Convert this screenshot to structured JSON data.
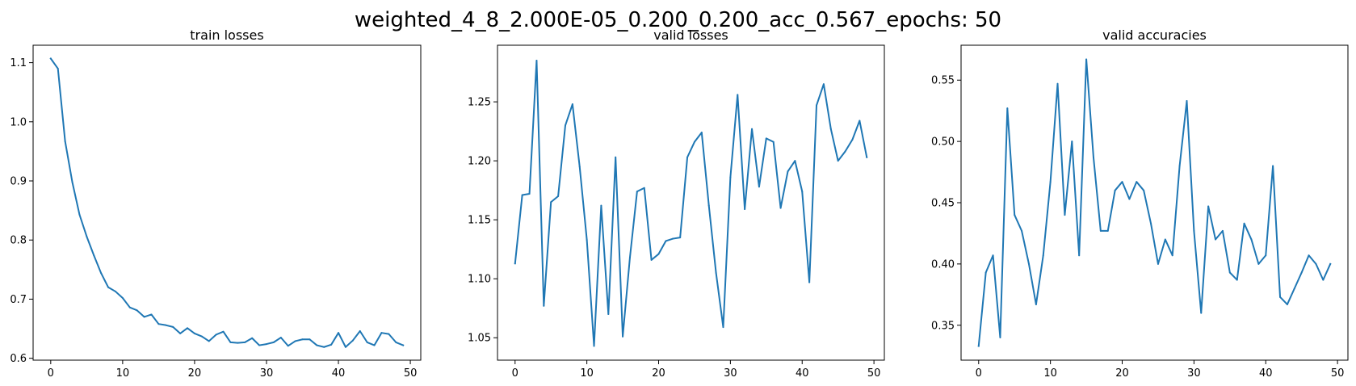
{
  "figure": {
    "suptitle": "weighted_4_8_2.000E-05_0.200_0.200_acc_0.567_epochs: 50"
  },
  "chart_data": [
    {
      "type": "line",
      "title": "train losses",
      "xlabel": "",
      "ylabel": "",
      "xlim": [
        -2.45,
        51.45
      ],
      "ylim": [
        0.5968,
        1.1295
      ],
      "xticks": [
        0,
        10,
        20,
        30,
        40,
        50
      ],
      "yticks": [
        0.6,
        0.7,
        0.8,
        0.9,
        1.0,
        1.1
      ],
      "ytick_labels": [
        "0.6",
        "0.7",
        "0.8",
        "0.9",
        "1.0",
        "1.1"
      ],
      "grid": false,
      "color": "#1f77b4",
      "x": [
        0,
        1,
        2,
        3,
        4,
        5,
        6,
        7,
        8,
        9,
        10,
        11,
        12,
        13,
        14,
        15,
        16,
        17,
        18,
        19,
        20,
        21,
        22,
        23,
        24,
        25,
        26,
        27,
        28,
        29,
        30,
        31,
        32,
        33,
        34,
        35,
        36,
        37,
        38,
        39,
        40,
        41,
        42,
        43,
        44,
        45,
        46,
        47,
        48,
        49
      ],
      "y": [
        1.107,
        1.09,
        0.967,
        0.898,
        0.843,
        0.806,
        0.774,
        0.744,
        0.72,
        0.713,
        0.702,
        0.686,
        0.681,
        0.67,
        0.674,
        0.658,
        0.656,
        0.653,
        0.642,
        0.651,
        0.642,
        0.637,
        0.629,
        0.64,
        0.645,
        0.627,
        0.626,
        0.627,
        0.634,
        0.622,
        0.624,
        0.627,
        0.635,
        0.621,
        0.629,
        0.632,
        0.632,
        0.622,
        0.619,
        0.623,
        0.643,
        0.619,
        0.63,
        0.646,
        0.627,
        0.622,
        0.643,
        0.641,
        0.627,
        0.622
      ]
    },
    {
      "type": "line",
      "title": "valid losses",
      "xlabel": "",
      "ylabel": "",
      "xlim": [
        -2.45,
        51.45
      ],
      "ylim": [
        1.031,
        1.298
      ],
      "xticks": [
        0,
        10,
        20,
        30,
        40,
        50
      ],
      "yticks": [
        1.05,
        1.1,
        1.15,
        1.2,
        1.25
      ],
      "ytick_labels": [
        "1.05",
        "1.10",
        "1.15",
        "1.20",
        "1.25"
      ],
      "grid": false,
      "color": "#1f77b4",
      "x": [
        0,
        1,
        2,
        3,
        4,
        5,
        6,
        7,
        8,
        9,
        10,
        11,
        12,
        13,
        14,
        15,
        16,
        17,
        18,
        19,
        20,
        21,
        22,
        23,
        24,
        25,
        26,
        27,
        28,
        29,
        30,
        31,
        32,
        33,
        34,
        35,
        36,
        37,
        38,
        39,
        40,
        41,
        42,
        43,
        44,
        45,
        46,
        47,
        48,
        49
      ],
      "y": [
        1.113,
        1.171,
        1.172,
        1.285,
        1.077,
        1.165,
        1.17,
        1.23,
        1.248,
        1.195,
        1.133,
        1.043,
        1.162,
        1.07,
        1.203,
        1.051,
        1.118,
        1.174,
        1.177,
        1.116,
        1.121,
        1.132,
        1.134,
        1.135,
        1.203,
        1.216,
        1.224,
        1.162,
        1.105,
        1.059,
        1.186,
        1.256,
        1.159,
        1.227,
        1.178,
        1.219,
        1.216,
        1.16,
        1.191,
        1.2,
        1.174,
        1.097,
        1.247,
        1.265,
        1.227,
        1.2,
        1.208,
        1.218,
        1.234,
        1.203
      ]
    },
    {
      "type": "line",
      "title": "valid accuracies",
      "xlabel": "",
      "ylabel": "",
      "xlim": [
        -2.45,
        51.45
      ],
      "ylim": [
        0.3215,
        0.5785
      ],
      "xticks": [
        0,
        10,
        20,
        30,
        40,
        50
      ],
      "yticks": [
        0.35,
        0.4,
        0.45,
        0.5,
        0.55
      ],
      "ytick_labels": [
        "0.35",
        "0.40",
        "0.45",
        "0.50",
        "0.55"
      ],
      "grid": false,
      "color": "#1f77b4",
      "x": [
        0,
        1,
        2,
        3,
        4,
        5,
        6,
        7,
        8,
        9,
        10,
        11,
        12,
        13,
        14,
        15,
        16,
        17,
        18,
        19,
        20,
        21,
        22,
        23,
        24,
        25,
        26,
        27,
        28,
        29,
        30,
        31,
        32,
        33,
        34,
        35,
        36,
        37,
        38,
        39,
        40,
        41,
        42,
        43,
        44,
        45,
        46,
        47,
        48,
        49
      ],
      "y": [
        0.333,
        0.393,
        0.407,
        0.34,
        0.527,
        0.44,
        0.427,
        0.4,
        0.367,
        0.407,
        0.467,
        0.547,
        0.44,
        0.5,
        0.407,
        0.567,
        0.487,
        0.427,
        0.427,
        0.46,
        0.467,
        0.453,
        0.467,
        0.46,
        0.433,
        0.4,
        0.42,
        0.407,
        0.48,
        0.533,
        0.427,
        0.36,
        0.447,
        0.42,
        0.427,
        0.393,
        0.387,
        0.433,
        0.42,
        0.4,
        0.407,
        0.48,
        0.373,
        0.367,
        0.38,
        0.393,
        0.407,
        0.4,
        0.387,
        0.4
      ]
    }
  ]
}
